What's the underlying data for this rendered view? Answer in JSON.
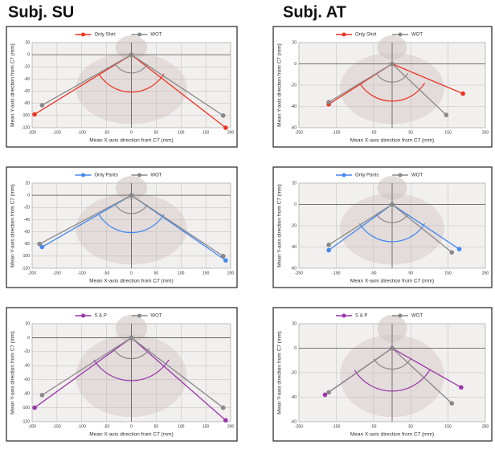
{
  "column_titles": [
    "Subj. SU",
    "Subj. AT"
  ],
  "chart_data": [
    {
      "type": "line",
      "x_label": "Mean X-axis direction from C7 (mm)",
      "y_label": "Mean Y-axis direction from C7 (mm)",
      "xlim": [
        -200,
        200
      ],
      "ylim": [
        -120,
        20
      ],
      "xticks": [
        -200,
        -150,
        -100,
        -50,
        0,
        50,
        100,
        150,
        200
      ],
      "yticks": [
        20,
        0,
        -20,
        -40,
        -60,
        -80,
        -100,
        -120
      ],
      "grid": true,
      "series": [
        {
          "name": "Only Shirt",
          "color": "#ee3322",
          "x": [
            -195,
            0,
            190
          ],
          "values": [
            -98,
            0,
            -120
          ]
        },
        {
          "name": "WOT",
          "color": "#888888",
          "x": [
            -180,
            0,
            185
          ],
          "values": [
            -83,
            0,
            -100
          ]
        }
      ]
    },
    {
      "type": "line",
      "x_label": "Mean X-axis direction from C7 (mm)",
      "y_label": "Mean Y-axis direction from C7 (mm)",
      "xlim": [
        -250,
        250
      ],
      "ylim": [
        -60,
        20
      ],
      "xticks": [
        -250,
        -150,
        -50,
        50,
        150,
        250
      ],
      "yticks": [
        20,
        0,
        -20,
        -40,
        -60
      ],
      "grid": true,
      "series": [
        {
          "name": "Only Shirt",
          "color": "#ee3322",
          "x": [
            -170,
            0,
            190
          ],
          "values": [
            -38,
            0,
            -28
          ]
        },
        {
          "name": "WOT",
          "color": "#888888",
          "x": [
            -170,
            0,
            145
          ],
          "values": [
            -36,
            0,
            -48
          ]
        }
      ]
    },
    {
      "type": "line",
      "x_label": "Mean X-axis direction from C7 (mm)",
      "y_label": "Mean Y-axis direction from C7 (mm)",
      "xlim": [
        -200,
        200
      ],
      "ylim": [
        -120,
        20
      ],
      "xticks": [
        -200,
        -150,
        -100,
        -50,
        0,
        50,
        100,
        150,
        200
      ],
      "yticks": [
        20,
        0,
        -20,
        -40,
        -60,
        -80,
        -100,
        -120
      ],
      "grid": true,
      "series": [
        {
          "name": "Only Pants",
          "color": "#4488ee",
          "x": [
            -180,
            0,
            190
          ],
          "values": [
            -85,
            0,
            -107
          ]
        },
        {
          "name": "WOT",
          "color": "#888888",
          "x": [
            -185,
            0,
            185
          ],
          "values": [
            -80,
            0,
            -100
          ]
        }
      ]
    },
    {
      "type": "line",
      "x_label": "Mean X-axis direction from C7 (mm)",
      "y_label": "Mean Y-axis direction from C7 (mm)",
      "xlim": [
        -250,
        250
      ],
      "ylim": [
        -60,
        20
      ],
      "xticks": [
        -250,
        -150,
        -50,
        50,
        150,
        250
      ],
      "yticks": [
        20,
        0,
        -20,
        -40,
        -60
      ],
      "grid": true,
      "series": [
        {
          "name": "Only Pants",
          "color": "#4488ee",
          "x": [
            -170,
            0,
            180
          ],
          "values": [
            -43,
            0,
            -42
          ]
        },
        {
          "name": "WOT",
          "color": "#888888",
          "x": [
            -170,
            0,
            160
          ],
          "values": [
            -38,
            0,
            -45
          ]
        }
      ]
    },
    {
      "type": "line",
      "x_label": "Mean X-axis direction from C7 (mm)",
      "y_label": "Mean Y-axis direction from C7 (mm)",
      "xlim": [
        -200,
        200
      ],
      "ylim": [
        -120,
        20
      ],
      "xticks": [
        -200,
        -150,
        -100,
        -50,
        0,
        50,
        100,
        150,
        200
      ],
      "yticks": [
        20,
        0,
        -20,
        -40,
        -60,
        -80,
        -100,
        -120
      ],
      "grid": true,
      "series": [
        {
          "name": "S & P",
          "color": "#9933aa",
          "x": [
            -195,
            0,
            190
          ],
          "values": [
            -100,
            0,
            -118
          ]
        },
        {
          "name": "WOT",
          "color": "#888888",
          "x": [
            -180,
            0,
            185
          ],
          "values": [
            -82,
            0,
            -100
          ]
        }
      ]
    },
    {
      "type": "line",
      "x_label": "Mean X-axis direction from C7 (mm)",
      "y_label": "Mean Y-axis direction from C7 (mm)",
      "xlim": [
        -250,
        250
      ],
      "ylim": [
        -60,
        20
      ],
      "xticks": [
        -250,
        -150,
        -50,
        50,
        150,
        250
      ],
      "yticks": [
        20,
        0,
        -20,
        -40,
        -60
      ],
      "grid": true,
      "series": [
        {
          "name": "S & P",
          "color": "#9933aa",
          "x": [
            -180,
            0,
            185
          ],
          "values": [
            -38,
            0,
            -32
          ]
        },
        {
          "name": "WOT",
          "color": "#888888",
          "x": [
            -170,
            0,
            160
          ],
          "values": [
            -36,
            0,
            -45
          ]
        }
      ]
    }
  ]
}
